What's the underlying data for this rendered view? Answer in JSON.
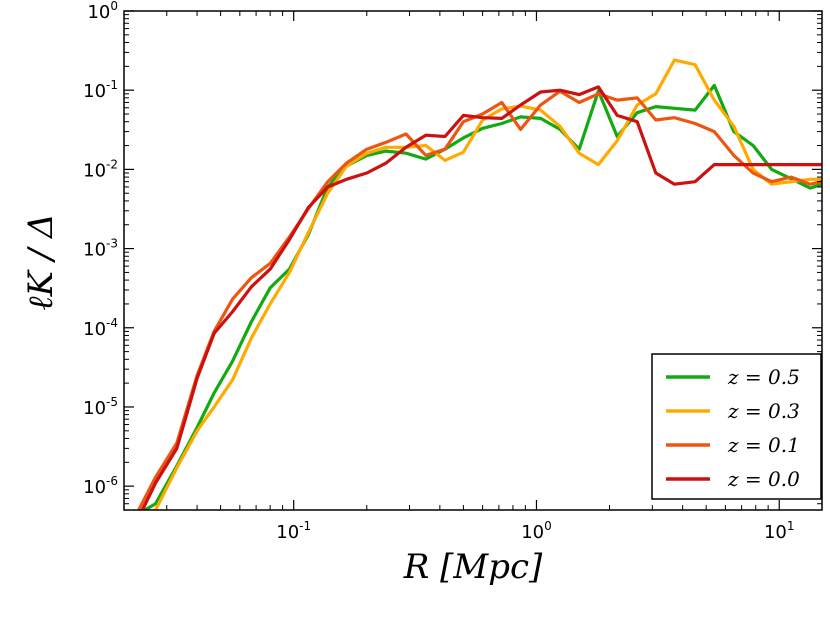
{
  "chart_data": {
    "type": "line",
    "title": "",
    "xlabel": "R [Mpc]",
    "ylabel": "ℓK / Δ",
    "xscale": "log",
    "yscale": "log",
    "xlim": [
      0.02,
      15
    ],
    "ylim": [
      5e-07,
      1
    ],
    "grid": false,
    "legend_position": "bottom-right",
    "x_ticks": [
      {
        "value": 0.1,
        "base": "10",
        "exp": "-1"
      },
      {
        "value": 1,
        "base": "10",
        "exp": "0"
      },
      {
        "value": 10,
        "base": "10",
        "exp": "1"
      }
    ],
    "y_ticks": [
      {
        "value": 1,
        "base": "10",
        "exp": "0"
      },
      {
        "value": 0.1,
        "base": "10",
        "exp": "-1"
      },
      {
        "value": 0.01,
        "base": "10",
        "exp": "-2"
      },
      {
        "value": 0.001,
        "base": "10",
        "exp": "-3"
      },
      {
        "value": 0.0001,
        "base": "10",
        "exp": "-4"
      },
      {
        "value": 1e-05,
        "base": "10",
        "exp": "-5"
      },
      {
        "value": 1e-06,
        "base": "10",
        "exp": "-6"
      }
    ],
    "x": [
      0.023,
      0.027,
      0.033,
      0.04,
      0.047,
      0.056,
      0.067,
      0.08,
      0.096,
      0.115,
      0.138,
      0.165,
      0.2,
      0.24,
      0.29,
      0.35,
      0.42,
      0.5,
      0.6,
      0.72,
      0.86,
      1.04,
      1.25,
      1.5,
      1.8,
      2.15,
      2.6,
      3.1,
      3.7,
      4.5,
      5.4,
      6.5,
      7.8,
      9.3,
      11.2,
      13.4,
      15
    ],
    "series": [
      {
        "name": "z = 0.5",
        "color": "#11aa11",
        "values": [
          4.5e-07,
          6e-07,
          1.8e-06,
          5.5e-06,
          1.5e-05,
          3.8e-05,
          0.00012,
          0.00032,
          0.00055,
          0.0015,
          0.006,
          0.011,
          0.015,
          0.017,
          0.016,
          0.0135,
          0.018,
          0.025,
          0.033,
          0.038,
          0.046,
          0.044,
          0.032,
          0.018,
          0.098,
          0.026,
          0.052,
          0.062,
          0.059,
          0.056,
          0.115,
          0.03,
          0.02,
          0.01,
          0.0076,
          0.0058,
          0.0065
        ]
      },
      {
        "name": "z = 0.3",
        "color": "#ffaa00",
        "values": [
          4e-07,
          5e-07,
          1.7e-06,
          5e-06,
          1e-05,
          2.2e-05,
          7.5e-05,
          0.0002,
          0.0005,
          0.0016,
          0.005,
          0.011,
          0.016,
          0.019,
          0.019,
          0.02,
          0.013,
          0.0165,
          0.042,
          0.058,
          0.063,
          0.056,
          0.035,
          0.016,
          0.0115,
          0.023,
          0.065,
          0.09,
          0.24,
          0.21,
          0.075,
          0.035,
          0.01,
          0.0065,
          0.007,
          0.0075,
          0.0075
        ]
      },
      {
        "name": "z = 0.1",
        "color": "#ee5511",
        "values": [
          5e-07,
          1.3e-06,
          3.5e-06,
          2.5e-05,
          9e-05,
          0.00023,
          0.00043,
          0.00065,
          0.0014,
          0.0032,
          0.007,
          0.012,
          0.018,
          0.022,
          0.028,
          0.015,
          0.018,
          0.04,
          0.05,
          0.07,
          0.032,
          0.065,
          0.097,
          0.07,
          0.09,
          0.075,
          0.08,
          0.042,
          0.045,
          0.038,
          0.03,
          0.015,
          0.009,
          0.007,
          0.008,
          0.0065,
          0.007
        ]
      },
      {
        "name": "z = 0.0",
        "color": "#cc1111",
        "values": [
          4e-07,
          1.1e-06,
          3e-06,
          2.3e-05,
          8.5e-05,
          0.00016,
          0.00033,
          0.00055,
          0.0013,
          0.0033,
          0.006,
          0.0075,
          0.009,
          0.012,
          0.019,
          0.027,
          0.026,
          0.048,
          0.045,
          0.044,
          0.065,
          0.095,
          0.1,
          0.088,
          0.11,
          0.048,
          0.04,
          0.009,
          0.0065,
          0.007,
          0.0115,
          0.0115,
          0.0115,
          0.0115,
          0.0115,
          0.0115,
          0.0115
        ]
      }
    ],
    "legend": [
      {
        "label": "z = 0.5",
        "color": "#11aa11"
      },
      {
        "label": "z = 0.3",
        "color": "#ffaa00"
      },
      {
        "label": "z = 0.1",
        "color": "#ee5511"
      },
      {
        "label": "z = 0.0",
        "color": "#cc1111"
      }
    ]
  }
}
